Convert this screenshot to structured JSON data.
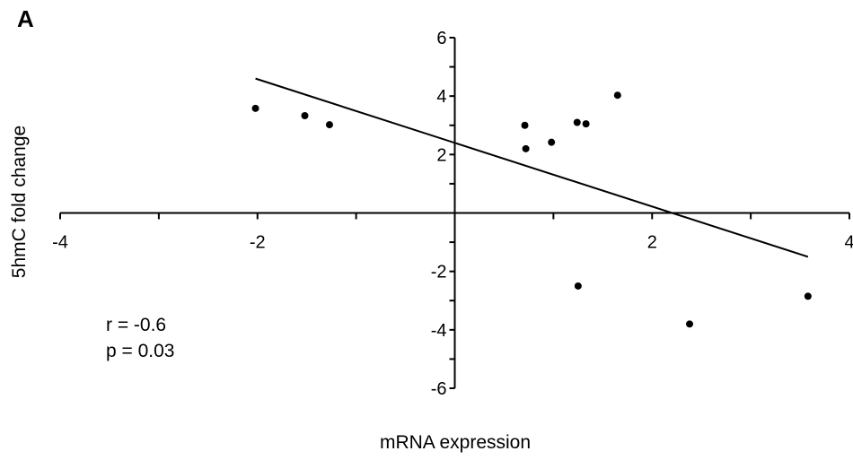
{
  "panel_label": "A",
  "stats": {
    "r": "r = -0.6",
    "p": "p = 0.03"
  },
  "chart_data": {
    "type": "scatter",
    "xlabel": "mRNA expression",
    "ylabel": "5hmC fold change",
    "xlim": [
      -4,
      4
    ],
    "ylim": [
      -6,
      6
    ],
    "xticks": [
      -4,
      -3,
      -2,
      -1,
      0,
      1,
      2,
      3,
      4
    ],
    "xtick_labels": [
      "-4",
      "",
      "-2",
      "",
      "",
      "",
      "2",
      "",
      "4"
    ],
    "yticks": [
      -6,
      -5,
      -4,
      -3,
      -2,
      -1,
      0,
      1,
      2,
      3,
      4,
      5,
      6
    ],
    "ytick_labels": [
      "-6",
      "",
      "-4",
      "",
      "-2",
      "",
      "",
      "",
      "2",
      "",
      "4",
      "",
      "6"
    ],
    "points": [
      {
        "x": -2.02,
        "y": 3.58
      },
      {
        "x": -1.52,
        "y": 3.33
      },
      {
        "x": -1.27,
        "y": 3.02
      },
      {
        "x": 0.71,
        "y": 3.0
      },
      {
        "x": 0.72,
        "y": 2.2
      },
      {
        "x": 0.98,
        "y": 2.42
      },
      {
        "x": 1.24,
        "y": 3.1
      },
      {
        "x": 1.33,
        "y": 3.05
      },
      {
        "x": 1.65,
        "y": 4.03
      },
      {
        "x": 1.25,
        "y": -2.5
      },
      {
        "x": 2.38,
        "y": -3.8
      },
      {
        "x": 3.58,
        "y": -2.85
      }
    ],
    "trend_line": {
      "x": [
        -2.02,
        3.58
      ],
      "y": [
        4.6,
        -1.5
      ]
    },
    "colors": {
      "points": "#000000",
      "line": "#000000",
      "axes": "#000000"
    }
  }
}
